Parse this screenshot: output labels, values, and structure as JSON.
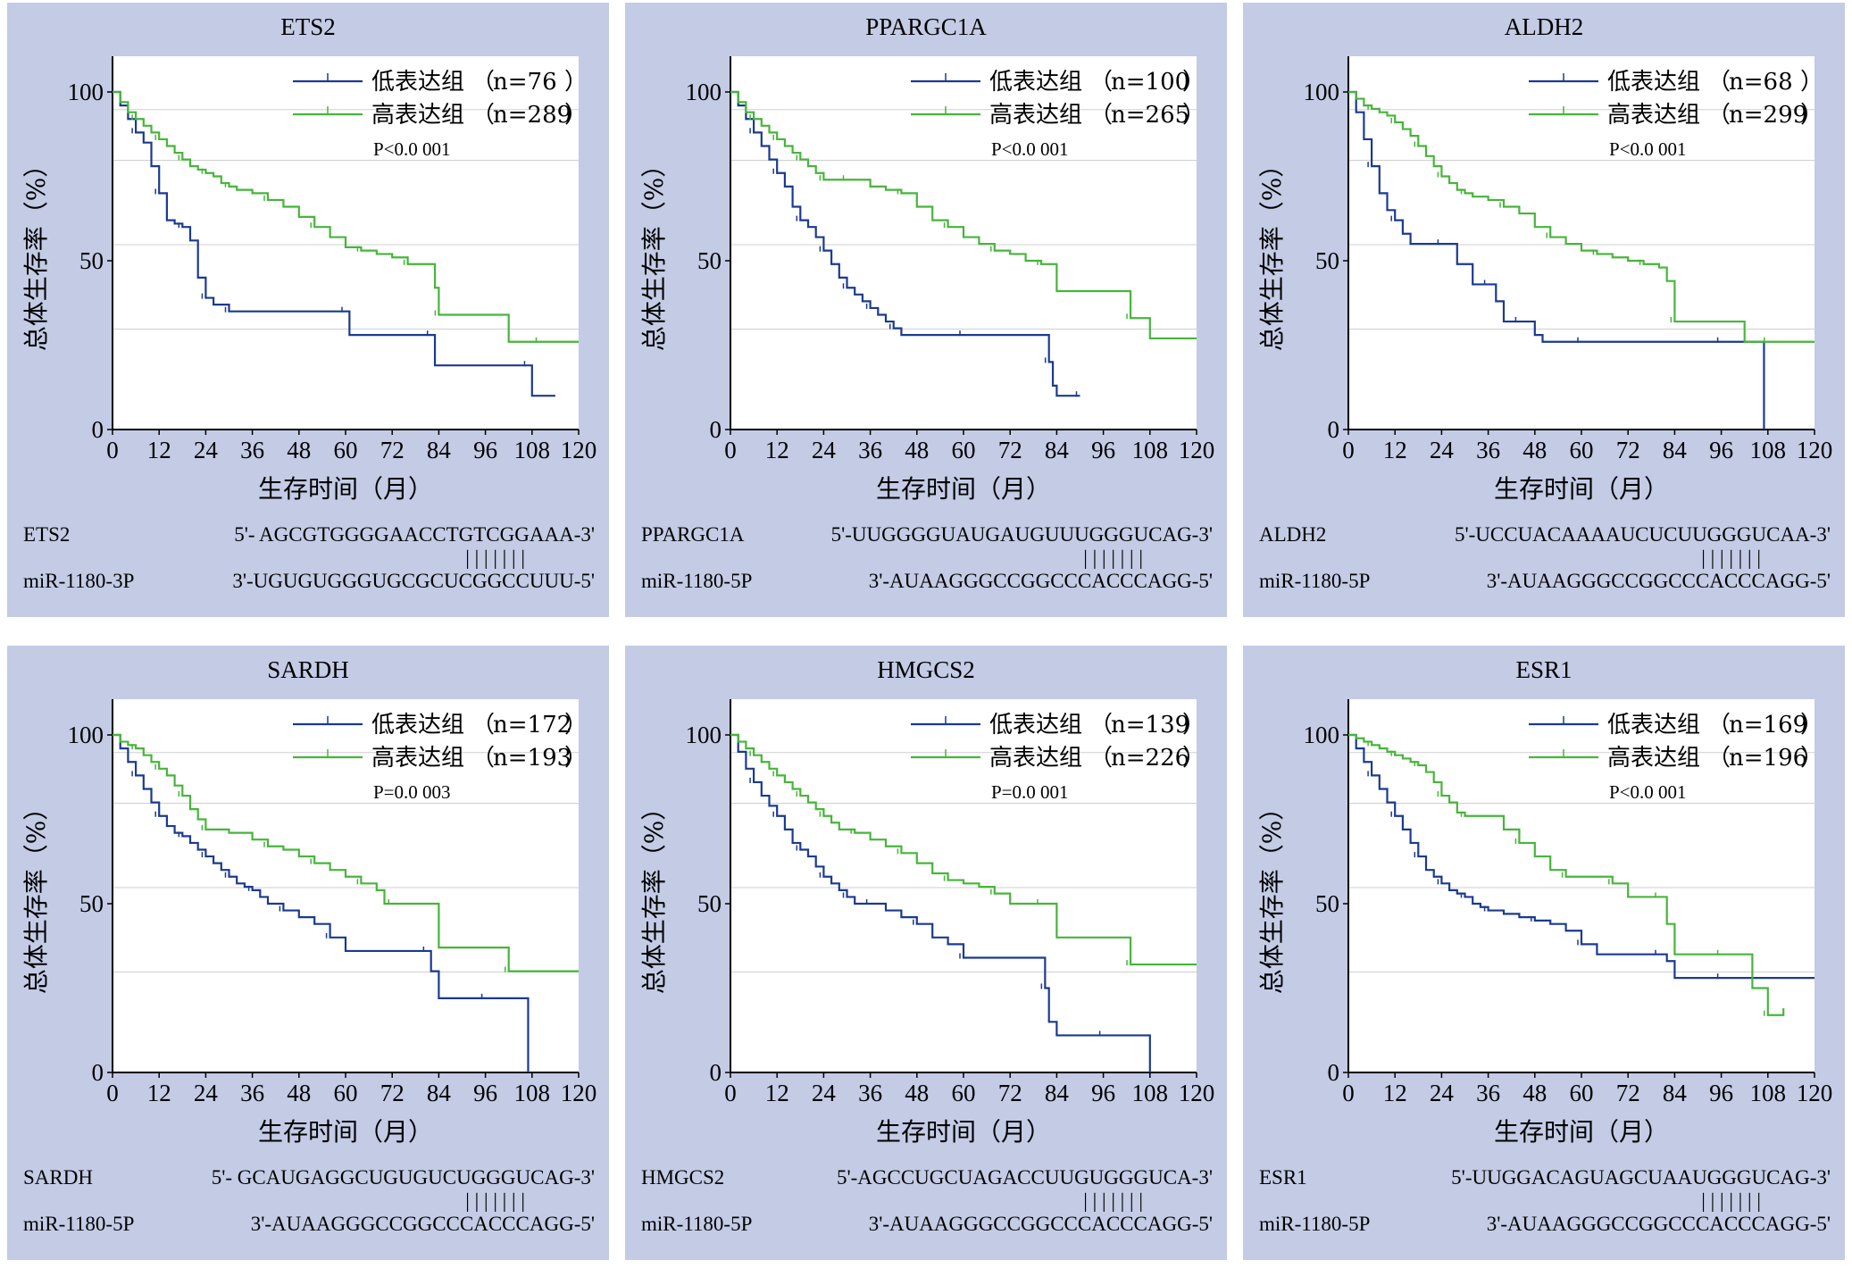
{
  "colors": {
    "panel_bg": "#c3cbe5",
    "low": "#1b3a8f",
    "high": "#46b53a",
    "grid": "#cfcfcf"
  },
  "chart_data": [
    {
      "type": "line",
      "title": "ETS2",
      "xlabel": "生存时间（月）",
      "ylabel": "总体生存率（%）",
      "xlim": [
        0,
        120
      ],
      "ylim": [
        0,
        100
      ],
      "xticks": [
        0,
        12,
        24,
        36,
        48,
        60,
        72,
        84,
        96,
        108,
        120
      ],
      "yticks": [
        0,
        50,
        100
      ],
      "legend_position": "top-right",
      "pvalue": "P<0.0 001",
      "series": [
        {
          "name": "低表达组（n=76）",
          "legend_label": "低表达组",
          "n_label": "n=76",
          "x": [
            0,
            2,
            4,
            6,
            8,
            10,
            12,
            14,
            16,
            18,
            20,
            22,
            24,
            26,
            28,
            30,
            36,
            48,
            60,
            61,
            72,
            82,
            83,
            96,
            107,
            108,
            114
          ],
          "y": [
            100,
            96,
            92,
            88,
            85,
            78,
            70,
            62,
            61,
            60,
            56,
            45,
            39,
            37,
            37,
            35,
            35,
            35,
            35,
            28,
            28,
            28,
            19,
            19,
            19,
            10,
            10
          ]
        },
        {
          "name": "高表达组（n=289）",
          "legend_label": "高表达组",
          "n_label": "n=289",
          "x": [
            0,
            2,
            4,
            6,
            8,
            10,
            12,
            14,
            16,
            18,
            20,
            22,
            24,
            26,
            28,
            30,
            32,
            36,
            40,
            44,
            48,
            52,
            56,
            60,
            64,
            68,
            72,
            76,
            80,
            83,
            84,
            100,
            102,
            110,
            120
          ],
          "y": [
            100,
            97,
            94,
            92,
            90,
            88,
            86,
            84,
            82,
            80,
            78,
            77,
            76,
            75,
            73,
            72,
            71,
            70,
            68,
            66,
            63,
            60,
            57,
            54,
            53,
            52,
            51,
            49,
            49,
            42,
            34,
            34,
            26,
            26,
            26
          ]
        }
      ],
      "sequence": {
        "gene_label": "ETS2",
        "gene_seq": "5'- AGCGTGGGGAACCTGTCGGAAA-3'",
        "pair_marks": "| | | | | | |",
        "mirna_label": "miR-1180-3P",
        "mirna_seq": "3'-UGUGUGGGUGCGCUCGGCCUUU-5'"
      }
    },
    {
      "type": "line",
      "title": "PPARGC1A",
      "xlabel": "生存时间（月）",
      "ylabel": "总体生存率（%）",
      "xlim": [
        0,
        120
      ],
      "ylim": [
        0,
        100
      ],
      "xticks": [
        0,
        12,
        24,
        36,
        48,
        60,
        72,
        84,
        96,
        108,
        120
      ],
      "yticks": [
        0,
        50,
        100
      ],
      "legend_position": "top-right",
      "pvalue": "P<0.0 001",
      "series": [
        {
          "name": "低表达组（n=100）",
          "legend_label": "低表达组",
          "n_label": "n=100",
          "x": [
            0,
            2,
            4,
            6,
            8,
            10,
            12,
            14,
            16,
            18,
            20,
            22,
            24,
            26,
            28,
            30,
            32,
            34,
            36,
            38,
            40,
            42,
            44,
            48,
            60,
            72,
            81,
            82,
            83,
            84,
            90
          ],
          "y": [
            100,
            96,
            92,
            88,
            84,
            80,
            76,
            72,
            66,
            62,
            60,
            57,
            53,
            49,
            45,
            42,
            40,
            38,
            36,
            34,
            32,
            30,
            28,
            28,
            28,
            28,
            28,
            20,
            13,
            10,
            10
          ]
        },
        {
          "name": "高表达组（n=265）",
          "legend_label": "高表达组",
          "n_label": "n=265",
          "x": [
            0,
            2,
            4,
            6,
            8,
            10,
            12,
            14,
            16,
            18,
            20,
            22,
            24,
            26,
            28,
            30,
            36,
            40,
            44,
            48,
            52,
            56,
            60,
            64,
            68,
            72,
            76,
            80,
            84,
            96,
            103,
            108,
            120
          ],
          "y": [
            100,
            97,
            94,
            92,
            90,
            88,
            86,
            84,
            82,
            80,
            78,
            76,
            74,
            74,
            74,
            74,
            72,
            71,
            70,
            66,
            62,
            60,
            57,
            55,
            53,
            52,
            50,
            49,
            41,
            41,
            33,
            27,
            27
          ]
        }
      ],
      "sequence": {
        "gene_label": "PPARGC1A",
        "gene_seq": "5'-UUGGGGUAUGAUGUUUGGGUCAG-3'",
        "pair_marks": "| | | | | | |",
        "mirna_label": "miR-1180-5P",
        "mirna_seq": "3'-AUAAGGGCCGGCCCACCCAGG-5'"
      }
    },
    {
      "type": "line",
      "title": "ALDH2",
      "xlabel": "生存时间（月）",
      "ylabel": "总体生存率（%）",
      "xlim": [
        0,
        120
      ],
      "ylim": [
        0,
        100
      ],
      "xticks": [
        0,
        12,
        24,
        36,
        48,
        60,
        72,
        84,
        96,
        108,
        120
      ],
      "yticks": [
        0,
        50,
        100
      ],
      "legend_position": "top-right",
      "pvalue": "P<0.0 001",
      "series": [
        {
          "name": "低表达组（n=68）",
          "legend_label": "低表达组",
          "n_label": "n=68",
          "x": [
            0,
            2,
            4,
            6,
            8,
            10,
            12,
            14,
            16,
            24,
            28,
            32,
            36,
            38,
            40,
            44,
            48,
            50,
            60,
            72,
            84,
            96,
            106,
            107
          ],
          "y": [
            100,
            94,
            86,
            78,
            70,
            65,
            62,
            58,
            55,
            55,
            49,
            43,
            43,
            38,
            32,
            32,
            28,
            26,
            26,
            26,
            26,
            26,
            26,
            0
          ]
        },
        {
          "name": "高表达组（n=299）",
          "legend_label": "高表达组",
          "n_label": "n=299",
          "x": [
            0,
            2,
            4,
            6,
            8,
            10,
            12,
            14,
            16,
            18,
            20,
            22,
            24,
            26,
            28,
            30,
            32,
            36,
            40,
            44,
            48,
            52,
            56,
            60,
            64,
            68,
            72,
            76,
            80,
            82,
            84,
            96,
            102,
            108,
            120
          ],
          "y": [
            100,
            98,
            96,
            95,
            94,
            93,
            91,
            89,
            87,
            84,
            81,
            78,
            75,
            73,
            71,
            70,
            69,
            68,
            66,
            64,
            60,
            57,
            55,
            53,
            52,
            51,
            50,
            49,
            48,
            44,
            32,
            32,
            26,
            26,
            26
          ]
        }
      ],
      "sequence": {
        "gene_label": "ALDH2",
        "gene_seq": "5'-UCCUACAAAAUCUCUUGGGUCAA-3'",
        "pair_marks": "| | | | | | |",
        "mirna_label": "miR-1180-5P",
        "mirna_seq": "3'-AUAAGGGCCGGCCCACCCAGG-5'"
      }
    },
    {
      "type": "line",
      "title": "SARDH",
      "xlabel": "生存时间（月）",
      "ylabel": "总体生存率（%）",
      "xlim": [
        0,
        120
      ],
      "ylim": [
        0,
        100
      ],
      "xticks": [
        0,
        12,
        24,
        36,
        48,
        60,
        72,
        84,
        96,
        108,
        120
      ],
      "yticks": [
        0,
        50,
        100
      ],
      "legend_position": "top-right",
      "pvalue": "P=0.0 003",
      "series": [
        {
          "name": "低表达组（n=172）",
          "legend_label": "低表达组",
          "n_label": "n=172",
          "x": [
            0,
            2,
            4,
            6,
            8,
            10,
            12,
            14,
            16,
            18,
            20,
            22,
            24,
            26,
            28,
            30,
            32,
            34,
            36,
            38,
            40,
            44,
            48,
            52,
            56,
            60,
            72,
            81,
            82,
            84,
            96,
            106,
            107
          ],
          "y": [
            100,
            96,
            92,
            88,
            84,
            80,
            76,
            73,
            71,
            70,
            68,
            66,
            64,
            62,
            60,
            58,
            56,
            55,
            54,
            52,
            50,
            48,
            46,
            44,
            40,
            36,
            36,
            36,
            30,
            22,
            22,
            22,
            0
          ]
        },
        {
          "name": "高表达组（n=193）",
          "legend_label": "高表达组",
          "n_label": "n=193",
          "x": [
            0,
            2,
            4,
            6,
            8,
            10,
            12,
            14,
            16,
            18,
            20,
            22,
            24,
            30,
            36,
            40,
            44,
            48,
            52,
            56,
            60,
            64,
            68,
            70,
            72,
            84,
            96,
            102,
            108,
            120
          ],
          "y": [
            100,
            98,
            97,
            96,
            94,
            92,
            90,
            88,
            85,
            82,
            78,
            75,
            72,
            71,
            69,
            67,
            66,
            64,
            62,
            60,
            58,
            56,
            54,
            50,
            50,
            37,
            37,
            30,
            30,
            30
          ]
        }
      ],
      "sequence": {
        "gene_label": "SARDH",
        "gene_seq": "5'- GCAUGAGGCUGUGUCUGGGUCAG-3'",
        "pair_marks": "| | | | | | |",
        "mirna_label": "miR-1180-5P",
        "mirna_seq": "3'-AUAAGGGCCGGCCCACCCAGG-5'"
      }
    },
    {
      "type": "line",
      "title": "HMGCS2",
      "xlabel": "生存时间（月）",
      "ylabel": "总体生存率（%）",
      "xlim": [
        0,
        120
      ],
      "ylim": [
        0,
        100
      ],
      "xticks": [
        0,
        12,
        24,
        36,
        48,
        60,
        72,
        84,
        96,
        108,
        120
      ],
      "yticks": [
        0,
        50,
        100
      ],
      "legend_position": "top-right",
      "pvalue": "P=0.0 001",
      "series": [
        {
          "name": "低表达组（n=139）",
          "legend_label": "低表达组",
          "n_label": "n=139",
          "x": [
            0,
            2,
            4,
            6,
            8,
            10,
            12,
            14,
            16,
            18,
            20,
            22,
            24,
            26,
            28,
            30,
            32,
            34,
            36,
            40,
            44,
            48,
            52,
            56,
            60,
            72,
            80,
            81,
            82,
            84,
            96,
            107,
            108
          ],
          "y": [
            100,
            95,
            90,
            86,
            82,
            79,
            76,
            72,
            68,
            66,
            64,
            61,
            58,
            56,
            54,
            52,
            50,
            50,
            50,
            48,
            46,
            44,
            40,
            38,
            34,
            34,
            34,
            25,
            15,
            11,
            11,
            11,
            0
          ]
        },
        {
          "name": "高表达组（n=226）",
          "legend_label": "高表达组",
          "n_label": "n=226",
          "x": [
            0,
            2,
            4,
            6,
            8,
            10,
            12,
            14,
            16,
            18,
            20,
            22,
            24,
            26,
            28,
            32,
            36,
            40,
            44,
            48,
            52,
            56,
            60,
            64,
            68,
            72,
            76,
            80,
            84,
            96,
            103,
            108,
            120
          ],
          "y": [
            100,
            98,
            96,
            94,
            92,
            90,
            88,
            86,
            84,
            82,
            80,
            78,
            76,
            74,
            72,
            71,
            69,
            67,
            65,
            62,
            59,
            57,
            56,
            55,
            53,
            50,
            50,
            50,
            40,
            40,
            32,
            32,
            32
          ]
        }
      ],
      "sequence": {
        "gene_label": "HMGCS2",
        "gene_seq": "5'-AGCCUGCUAGACCUUGUGGGUCA-3'",
        "pair_marks": "| | | | | | |",
        "mirna_label": "miR-1180-5P",
        "mirna_seq": "3'-AUAAGGGCCGGCCCACCCAGG-5'"
      }
    },
    {
      "type": "line",
      "title": "ESR1",
      "xlabel": "生存时间（月）",
      "ylabel": "总体生存率（%）",
      "xlim": [
        0,
        120
      ],
      "ylim": [
        0,
        100
      ],
      "xticks": [
        0,
        12,
        24,
        36,
        48,
        60,
        72,
        84,
        96,
        108,
        120
      ],
      "yticks": [
        0,
        50,
        100
      ],
      "legend_position": "top-right",
      "pvalue": "P<0.0 001",
      "series": [
        {
          "name": "低表达组（n=169）",
          "legend_label": "低表达组",
          "n_label": "n=169",
          "x": [
            0,
            2,
            4,
            6,
            8,
            10,
            12,
            14,
            16,
            18,
            20,
            22,
            24,
            26,
            28,
            30,
            32,
            34,
            36,
            40,
            44,
            48,
            52,
            56,
            60,
            64,
            72,
            80,
            82,
            84,
            96,
            108,
            120
          ],
          "y": [
            100,
            96,
            92,
            88,
            84,
            80,
            76,
            72,
            68,
            64,
            60,
            58,
            56,
            54,
            53,
            52,
            50,
            49,
            48,
            47,
            46,
            45,
            44,
            42,
            38,
            35,
            35,
            35,
            33,
            28,
            28,
            28,
            28
          ]
        },
        {
          "name": "高表达组（n=196）",
          "legend_label": "高表达组",
          "n_label": "n=196",
          "x": [
            0,
            2,
            4,
            6,
            8,
            10,
            12,
            14,
            16,
            18,
            20,
            22,
            24,
            26,
            28,
            30,
            36,
            40,
            44,
            48,
            52,
            56,
            60,
            64,
            68,
            72,
            76,
            80,
            82,
            84,
            96,
            104,
            106,
            108,
            112
          ],
          "y": [
            100,
            99,
            98,
            97,
            96,
            95,
            94,
            93,
            92,
            91,
            89,
            86,
            82,
            80,
            77,
            76,
            76,
            72,
            68,
            64,
            60,
            58,
            58,
            58,
            56,
            52,
            52,
            52,
            44,
            35,
            35,
            25,
            25,
            17,
            19
          ]
        }
      ],
      "sequence": {
        "gene_label": "ESR1",
        "gene_seq": "5'-UUGGACAGUAGCUAAUGGGUCAG-3'",
        "pair_marks": "| | | | | | |",
        "mirna_label": "miR-1180-5P",
        "mirna_seq": "3'-AUAAGGGCCGGCCCACCCAGG-5'"
      }
    }
  ]
}
